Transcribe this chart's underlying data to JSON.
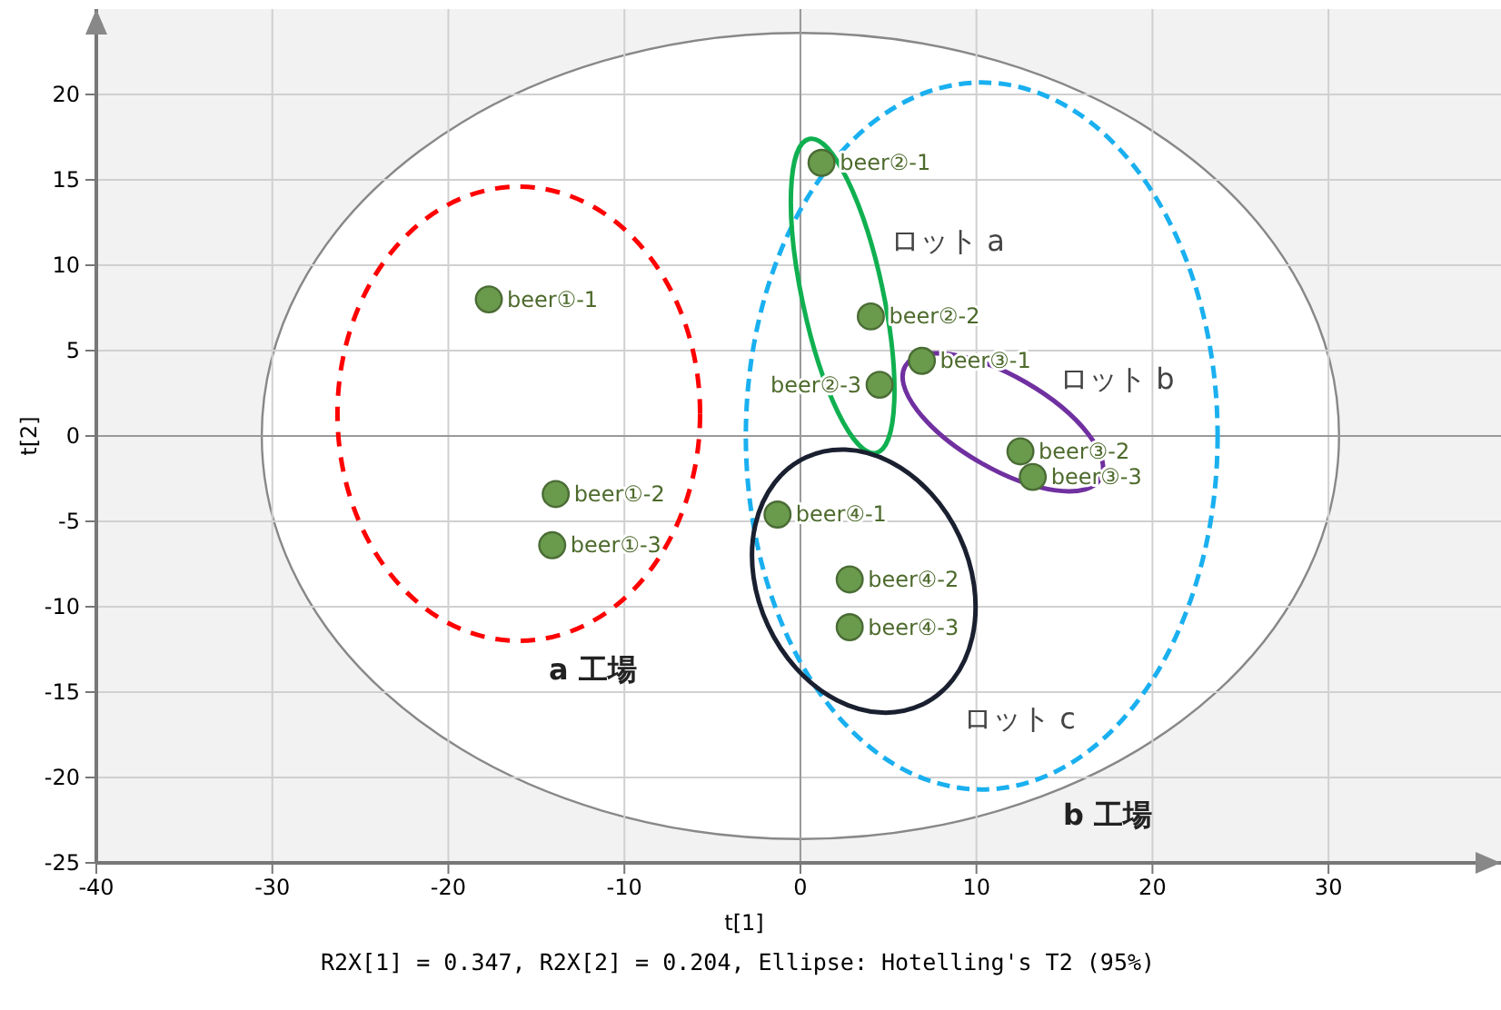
{
  "chart_data": {
    "type": "scatter",
    "xlabel": "t[1]",
    "ylabel": "t[2]",
    "x": [
      -17.7,
      -13.9,
      -14.1,
      1.2,
      4.0,
      4.5,
      6.9,
      12.5,
      13.2,
      -1.3,
      2.8,
      2.8
    ],
    "values": [
      8.0,
      -3.4,
      -6.4,
      16.0,
      7.0,
      3.0,
      4.4,
      -0.9,
      -2.4,
      -4.6,
      -8.4,
      -11.2
    ],
    "color": "#6a9a4c",
    "marker": "circle",
    "grid": true,
    "xlim": [
      -40,
      39.8
    ],
    "ylim": [
      -25,
      25
    ],
    "xticks": [
      -40,
      -30,
      -20,
      -10,
      0,
      10,
      20,
      30
    ],
    "yticks": [
      -25,
      -20,
      -15,
      -10,
      -5,
      0,
      5,
      10,
      15,
      20
    ],
    "annotations": [
      {
        "text": "beer①-1",
        "x": -17.7,
        "y": 8.0
      },
      {
        "text": "beer①-2",
        "x": -13.9,
        "y": -3.4
      },
      {
        "text": "beer①-3",
        "x": -14.1,
        "y": -6.4
      },
      {
        "text": "beer②-1",
        "x": 1.2,
        "y": 16.0
      },
      {
        "text": "beer②-2",
        "x": 4.0,
        "y": 7.0
      },
      {
        "text": "beer②-3",
        "x": 4.5,
        "y": 3.0
      },
      {
        "text": "beer③-1",
        "x": 6.9,
        "y": 4.4
      },
      {
        "text": "beer③-2",
        "x": 12.5,
        "y": -0.9
      },
      {
        "text": "beer③-3",
        "x": 13.2,
        "y": -2.4
      },
      {
        "text": "beer④-1",
        "x": -1.3,
        "y": -4.6
      },
      {
        "text": "beer④-2",
        "x": 2.8,
        "y": -8.4
      },
      {
        "text": "beer④-3",
        "x": 2.8,
        "y": -11.2
      },
      "ロット a",
      "ロット b",
      "ロット c",
      "a 工場",
      "b 工場",
      "R2X[1] = 0.347, R2X[2] = 0.204, Ellipse: Hotelling's T2 (95%)"
    ]
  }
}
